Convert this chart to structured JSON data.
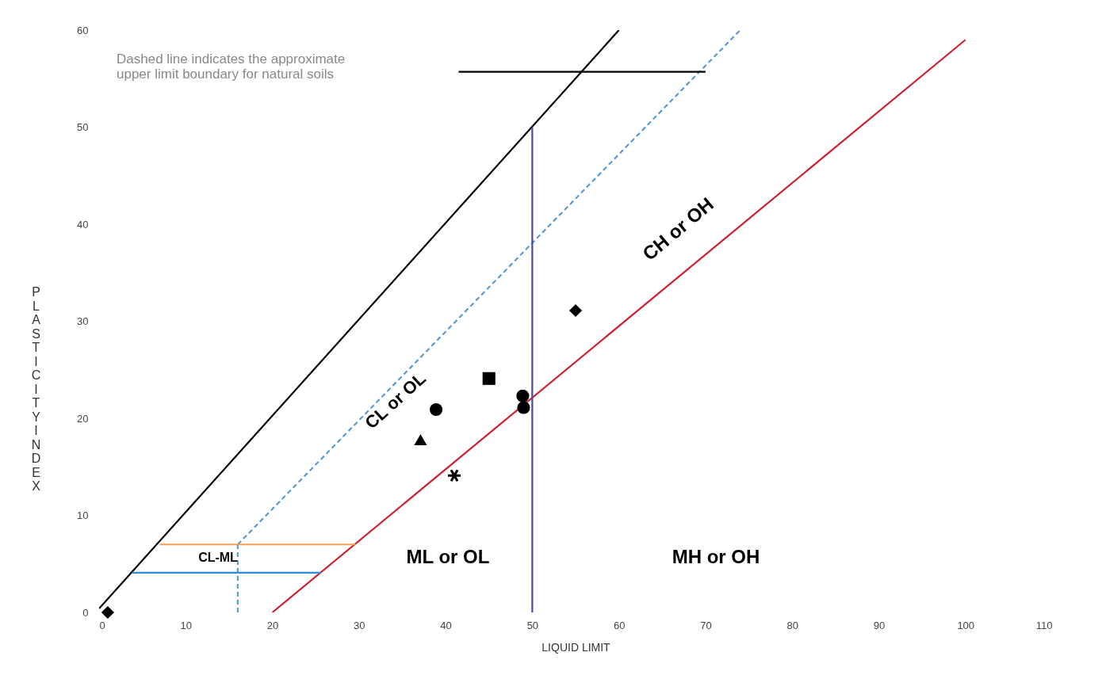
{
  "chart_data": {
    "type": "scatter",
    "xlabel": "LIQUID LIMIT",
    "ylabel": "PLASTICITY INDEX",
    "xlim": [
      0,
      110
    ],
    "ylim": [
      0,
      60
    ],
    "xticks": [
      0,
      10,
      20,
      30,
      40,
      50,
      60,
      70,
      80,
      90,
      100,
      110
    ],
    "yticks": [
      0,
      10,
      20,
      30,
      40,
      50,
      60
    ],
    "grid": false,
    "series": [
      {
        "type": "line",
        "color": "#000000",
        "line_style": "solid",
        "x": [
          0,
          60
        ],
        "values": [
          0.4,
          60
        ]
      },
      {
        "type": "line",
        "color": "#5b9bd5",
        "line_style": "dashed",
        "x": [
          16,
          74
        ],
        "values": [
          7,
          60
        ]
      },
      {
        "type": "line",
        "color": "#5b9bd5",
        "line_style": "dashed",
        "x": [
          16,
          16
        ],
        "values": [
          0,
          7
        ]
      },
      {
        "type": "line",
        "color": "#cc2233",
        "line_style": "solid",
        "x": [
          20,
          100
        ],
        "values": [
          0,
          59
        ]
      },
      {
        "type": "line",
        "color": "#4b4b9b",
        "line_style": "solid",
        "x": [
          50,
          50
        ],
        "values": [
          0,
          50
        ]
      },
      {
        "type": "line",
        "color": "#f0a050",
        "line_style": "solid",
        "x": [
          7,
          29.6
        ],
        "values": [
          7,
          7
        ]
      },
      {
        "type": "line",
        "color": "#2f8fd8",
        "line_style": "solid",
        "x": [
          3.8,
          25.6
        ],
        "values": [
          4.1,
          4.1
        ]
      },
      {
        "type": "line",
        "color": "#000000",
        "line_style": "solid",
        "x": [
          41.5,
          70
        ],
        "values": [
          55.7,
          55.7
        ]
      },
      {
        "marker": "diamond",
        "color": "#000000",
        "x": [
          1,
          55
        ],
        "values": [
          0,
          31.1
        ]
      },
      {
        "marker": "triangle",
        "color": "#000000",
        "x": [
          37.1
        ],
        "values": [
          17.8
        ]
      },
      {
        "marker": "circle",
        "color": "#000000",
        "x": [
          38.9,
          48.9,
          49
        ],
        "values": [
          20.9,
          22.3,
          21.1
        ]
      },
      {
        "marker": "square",
        "color": "#000000",
        "x": [
          45
        ],
        "values": [
          24.1
        ]
      },
      {
        "marker": "cross",
        "color": "#000000",
        "x": [
          41
        ],
        "values": [
          14.1
        ]
      }
    ],
    "annotations": [
      "CH or OH",
      "CL or OL",
      "ML or OL",
      "MH or OH",
      "CL-ML",
      "Dashed line indicates the approximate\nupper limit boundary for natural soils"
    ]
  }
}
